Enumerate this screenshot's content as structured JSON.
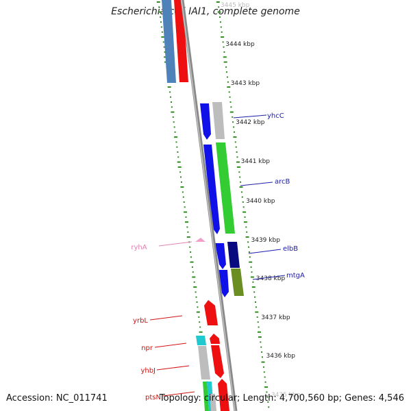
{
  "title": "Escherichia coli IAI1, complete genome",
  "footer": {
    "accession": "Accession: NC_011741",
    "topology": "Topology: circular; Length: 4,700,560 bp; Genes: 4,546"
  },
  "ticks": [
    {
      "label": "3445 kbp",
      "faded": true
    },
    {
      "label": "3444 kbp"
    },
    {
      "label": "3443 kbp"
    },
    {
      "label": "3442 kbp"
    },
    {
      "label": "3441 kbp"
    },
    {
      "label": "3440 kbp"
    },
    {
      "label": "3439 kbp"
    },
    {
      "label": "3438 kbp"
    },
    {
      "label": "3437 kbp"
    },
    {
      "label": "3436 kbp"
    },
    {
      "label": "3435 kbp",
      "faded": true
    }
  ],
  "gene_labels": {
    "yhcC": "yhcC",
    "arcB": "arcB",
    "elbB": "elbB",
    "mtgA": "mtgA",
    "ryhA": "ryhA",
    "yrbL": "yrbL",
    "npr": "npr",
    "yhbJ": "yhbJ",
    "ptsN": "ptsN"
  },
  "colors": {
    "backbone": "#8a8a8a",
    "gc_skew": "#2e8b1e",
    "label_blue": "#1a1aaa",
    "label_red": "#d01010",
    "label_pink": "#e080b0",
    "feature_blue": "#1010e8",
    "feature_navy": "#0a0a80",
    "feature_green": "#33cc33",
    "feature_olive": "#6b8e23",
    "feature_gray": "#bdbdbd",
    "feature_red": "#ee1010",
    "feature_steel": "#4f82b8",
    "feature_cyan": "#20c8d0",
    "feature_pink": "#f0a0c8"
  }
}
